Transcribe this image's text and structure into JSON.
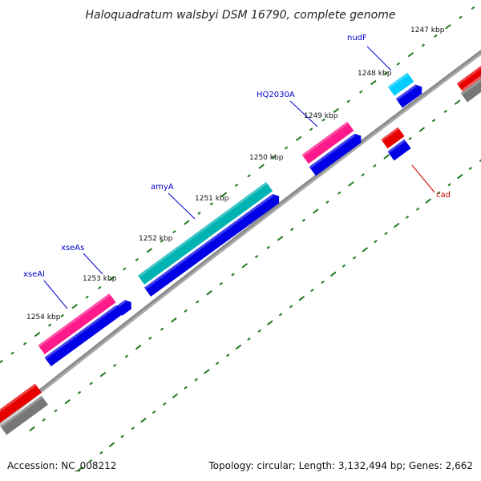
{
  "title": "Haloquadratum walsbyi DSM 16790, complete genome",
  "footer": {
    "accession": "Accession: NC_008212",
    "summary": "Topology: circular; Length: 3,132,494 bp; Genes: 2,662"
  },
  "colors": {
    "backbone": "#8c8c8c",
    "cds": "#0000e6",
    "trna": "#00b3b3",
    "rrna": "#ff1a8c",
    "cyan": "#00ccff",
    "red": "#e60000",
    "grey": "#777777",
    "ticks": "#1f7a1f",
    "forward_label": "#0000cc",
    "reverse_label": "#cc0000"
  },
  "ticks": [
    {
      "label": "1247 kbp"
    },
    {
      "label": "1248 kbp"
    },
    {
      "label": "1249 kbp"
    },
    {
      "label": "1250 kbp"
    },
    {
      "label": "1251 kbp"
    },
    {
      "label": "1252 kbp"
    },
    {
      "label": "1253 kbp"
    },
    {
      "label": "1254 kbp"
    }
  ],
  "genes": [
    {
      "label": "nudF",
      "strand": "forward"
    },
    {
      "label": "HQ2030A",
      "strand": "forward"
    },
    {
      "label": "amyA",
      "strand": "forward"
    },
    {
      "label": "xseAs",
      "strand": "forward"
    },
    {
      "label": "xseAl",
      "strand": "forward"
    },
    {
      "label": "cad",
      "strand": "reverse"
    }
  ]
}
